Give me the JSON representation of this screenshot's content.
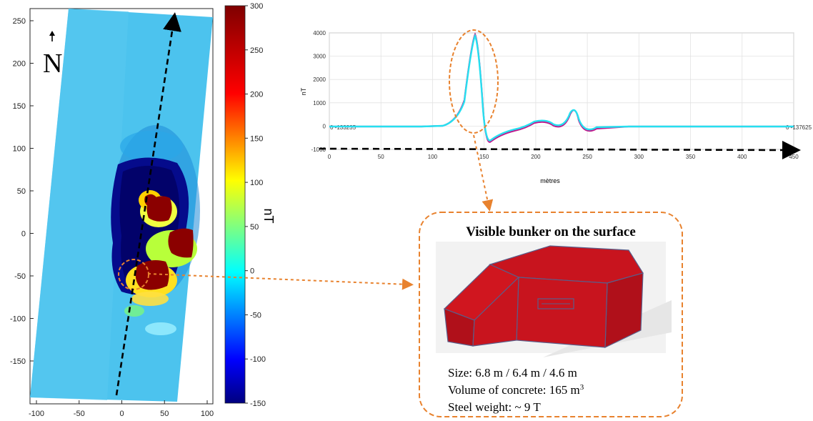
{
  "map": {
    "north_label": "N",
    "x_ticks": [
      "-100",
      "-50",
      "0",
      "50",
      "100"
    ],
    "y_ticks": [
      "250",
      "200",
      "150",
      "100",
      "50",
      "0",
      "-50",
      "-100",
      "-150"
    ],
    "colorbar_ticks": [
      "300",
      "250",
      "200",
      "150",
      "100",
      "50",
      "0",
      "-50",
      "-100",
      "-150"
    ],
    "colorbar_label": "nT"
  },
  "profile": {
    "ylabel": "nT",
    "xlabel": "mètres",
    "y_ticks": [
      "4000",
      "3000",
      "2000",
      "1000",
      "0",
      "-1000"
    ],
    "x_ticks": [
      "0",
      "50",
      "100",
      "150",
      "200",
      "250",
      "300",
      "350",
      "400",
      "450"
    ],
    "start_label": "0 -133235",
    "end_label": "0 -137625"
  },
  "callout": {
    "title": "Visible bunker on the surface",
    "size_line": "Size: 6.8 m / 6.4 m / 4.6 m",
    "volume_prefix": "Volume of concrete: 165 m",
    "volume_sup": "3",
    "steel_line": "Steel weight: ~ 9 T"
  },
  "colors": {
    "callout_orange": "#e8822e",
    "profile_line": "#26e0f0",
    "bunker_red": "#c8141e"
  }
}
